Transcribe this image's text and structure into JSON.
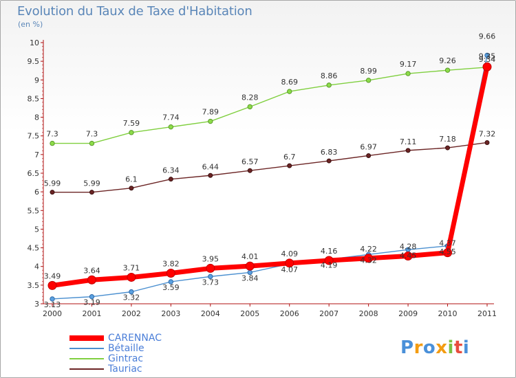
{
  "header": {
    "title": "Evolution du Taux de Taxe d'Habitation",
    "subtitle": "(en %)"
  },
  "brand": {
    "letters": [
      {
        "ch": "P",
        "color": "#4a90d9"
      },
      {
        "ch": "r",
        "color": "#f39c12"
      },
      {
        "ch": "o",
        "color": "#4a90d9"
      },
      {
        "ch": "x",
        "color": "#f39c12"
      },
      {
        "ch": "i",
        "color": "#7bc043"
      },
      {
        "ch": "t",
        "color": "#e84c3d"
      },
      {
        "ch": "i",
        "color": "#4a90d9"
      }
    ]
  },
  "chart_data": {
    "type": "line",
    "title": "Evolution du Taux de Taxe d'Habitation",
    "subtitle": "(en %)",
    "xlabel": "",
    "ylabel": "",
    "ylim": [
      3,
      10
    ],
    "yticks": [
      3,
      3.5,
      4,
      4.5,
      5,
      5.5,
      6,
      6.5,
      7,
      7.5,
      8,
      8.5,
      9,
      9.5,
      10
    ],
    "grid": false,
    "legend_position": "bottom-left",
    "x": [
      "2000",
      "2001",
      "2002",
      "2003",
      "2004",
      "2005",
      "2006",
      "2007",
      "2008",
      "2009",
      "2010",
      "2011"
    ],
    "series": [
      {
        "name": "CARENNAC",
        "color": "#ff0000",
        "values": [
          3.49,
          3.64,
          3.71,
          3.82,
          3.95,
          4.01,
          4.09,
          4.16,
          4.22,
          4.28,
          4.37,
          9.35
        ],
        "labels": [
          "3.49",
          "3.64",
          "3.71",
          "3.82",
          "3.95",
          "4.01",
          "4.09",
          "4.16",
          "4.22",
          "4.28",
          "4.37",
          "9.35"
        ]
      },
      {
        "name": "Bétaille",
        "color": "#4a8fd0",
        "values": [
          3.13,
          3.19,
          3.32,
          3.59,
          3.73,
          3.84,
          4.07,
          4.19,
          4.32,
          4.45,
          4.55,
          9.66
        ],
        "labels": [
          "3.13",
          "3.19",
          "3.32",
          "3.59",
          "3.73",
          "3.84",
          "4.07",
          "4.19",
          "4.32",
          "4.45",
          "4.55",
          "9.66"
        ]
      },
      {
        "name": "Gintrac",
        "color": "#7fcf3e",
        "values": [
          7.3,
          7.3,
          7.59,
          7.74,
          7.89,
          8.28,
          8.69,
          8.86,
          8.99,
          9.17,
          9.26,
          9.34
        ],
        "labels": [
          "7.3",
          "7.3",
          "7.59",
          "7.74",
          "7.89",
          "8.28",
          "8.69",
          "8.86",
          "8.99",
          "9.17",
          "9.26",
          "9.34"
        ]
      },
      {
        "name": "Tauriac",
        "color": "#6b2424",
        "values": [
          5.99,
          5.99,
          6.1,
          6.34,
          6.44,
          6.57,
          6.7,
          6.83,
          6.97,
          7.11,
          7.18,
          7.32
        ],
        "labels": [
          "5.99",
          "5.99",
          "6.1",
          "6.34",
          "6.44",
          "6.57",
          "6.7",
          "6.83",
          "6.97",
          "7.11",
          "7.18",
          "7.32"
        ]
      }
    ]
  }
}
